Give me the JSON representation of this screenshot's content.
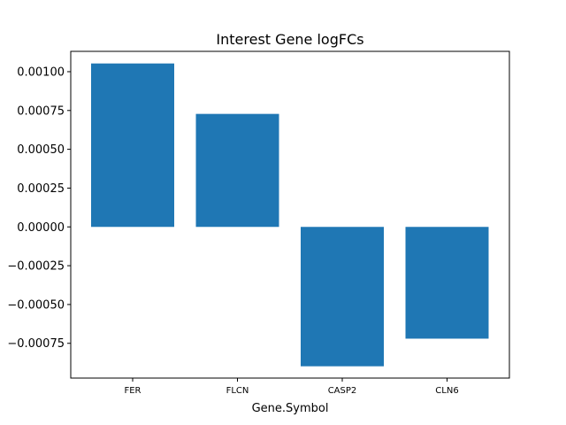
{
  "chart_data": {
    "type": "bar",
    "title": "Interest Gene logFCs",
    "xlabel": "Gene.Symbol",
    "ylabel": "",
    "categories": [
      "FER",
      "FLCN",
      "CASP2",
      "CLN6"
    ],
    "values": [
      0.001053,
      0.000728,
      -0.000898,
      -0.00072
    ],
    "ylim": [
      -0.000974,
      0.001131
    ],
    "yticks": [
      0.001,
      0.00075,
      0.0005,
      0.00025,
      0.0,
      -0.00025,
      -0.0005,
      -0.00075
    ],
    "ytick_labels": [
      "0.00100",
      "0.00075",
      "0.00050",
      "0.00025",
      "0.00000",
      "−0.00025",
      "−0.00050",
      "−0.00075"
    ],
    "bar_color": "#1f77b4",
    "grid": false,
    "legend": "none"
  }
}
